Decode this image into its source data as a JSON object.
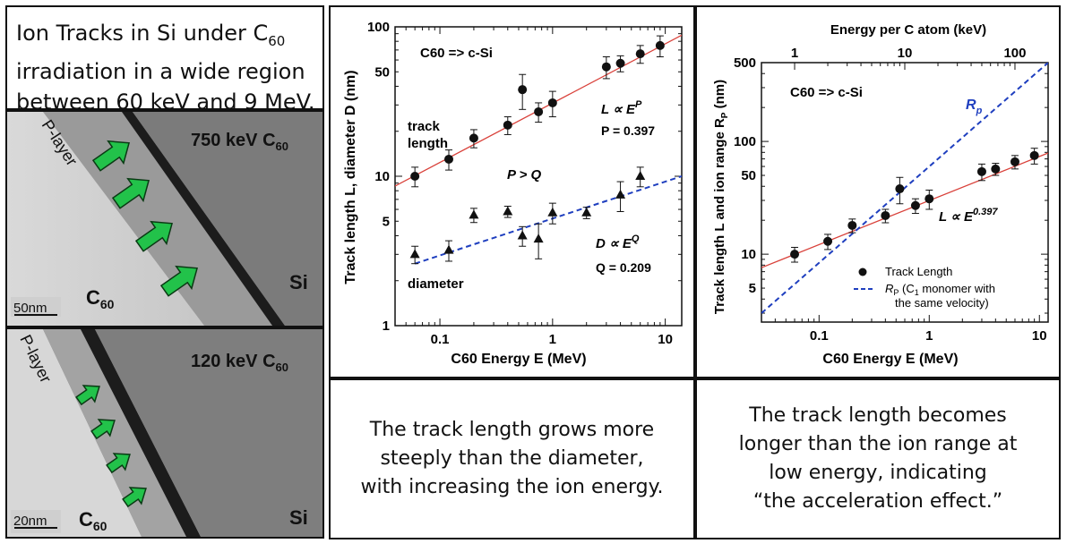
{
  "title": {
    "line1": "Ion Tracks in Si under C",
    "line1_sub": "60",
    "line2": "irradiation in a wide region",
    "line3": "between 60 keV and 9 MeV."
  },
  "tem_panels": [
    {
      "label": "750 keV C",
      "label_sub": "60",
      "player": "P-layer",
      "scale": "50nm",
      "c60": "C",
      "c60_sub": "60",
      "si": "Si"
    },
    {
      "label": "120 keV C",
      "label_sub": "60",
      "player": "P-layer",
      "scale": "20nm",
      "c60": "C",
      "c60_sub": "60",
      "si": "Si"
    }
  ],
  "captions": {
    "left": [
      "The track length grows more",
      "steeply than the diameter,",
      "with increasing the ion energy."
    ],
    "right": [
      "The track length becomes",
      "longer than the ion range at",
      "low energy, indicating",
      "“the acceleration effect.”"
    ]
  },
  "chart_data": [
    {
      "type": "scatter",
      "xscale": "log",
      "yscale": "log",
      "xlim": [
        0.04,
        14
      ],
      "ylim": [
        1,
        100
      ],
      "xticks": [
        "0.1",
        "1",
        "10"
      ],
      "yticks": [
        "1",
        "5",
        "10",
        "50",
        "100"
      ],
      "xlabel": "C60 Energy  E  (MeV)",
      "ylabel": "Track length  L, diameter  D  (nm)",
      "annotations": {
        "system": "C60 => c-Si",
        "track": "track",
        "length": "length",
        "pq": "P > Q",
        "diameter": "diameter",
        "l_law": "L ∝ E",
        "l_exp": "P",
        "p_value": "P = 0.397",
        "d_law": "D ∝ E",
        "d_exp": "Q",
        "q_value": "Q = 0.209"
      },
      "series": [
        {
          "marker": "circle",
          "x": [
            0.06,
            0.12,
            0.2,
            0.4,
            0.54,
            0.75,
            1.0,
            3.0,
            4.0,
            6.0,
            9.0
          ],
          "y": [
            10,
            13,
            18,
            22,
            38,
            27,
            31,
            54,
            57,
            66,
            75
          ],
          "err": [
            1.5,
            2,
            2.5,
            3,
            10,
            4,
            6,
            9,
            7,
            9,
            12
          ]
        },
        {
          "marker": "triangle",
          "x": [
            0.06,
            0.12,
            0.2,
            0.4,
            0.54,
            0.75,
            1.0,
            2.0,
            4.0,
            6.0
          ],
          "y": [
            3.0,
            3.2,
            5.5,
            5.8,
            4.0,
            3.8,
            5.7,
            5.7,
            7.5,
            10
          ],
          "err": [
            0.4,
            0.5,
            0.6,
            0.5,
            0.6,
            1.0,
            0.9,
            0.5,
            1.7,
            1.5
          ]
        }
      ],
      "fits": [
        {
          "name": "L fit",
          "color": "#d9413a",
          "style": "solid",
          "x": [
            0.04,
            14
          ],
          "y": [
            8.6,
            88
          ]
        },
        {
          "name": "D fit",
          "color": "#1f3fbf",
          "style": "dashed",
          "x": [
            0.06,
            14
          ],
          "y": [
            2.6,
            10
          ]
        }
      ]
    },
    {
      "type": "scatter",
      "xscale": "log",
      "yscale": "log",
      "xlim": [
        0.03,
        12
      ],
      "ylim": [
        2.5,
        500
      ],
      "xticks": [
        "0.1",
        "1",
        "10"
      ],
      "yticks": [
        "5",
        "10",
        "50",
        "100",
        "500"
      ],
      "top_xticks": [
        "1",
        "10",
        "100"
      ],
      "top_xlabel": "Energy per C atom (keV)",
      "xlabel": "C60 Energy  E  (MeV)",
      "ylabel": "Track length  L  and ion range  R",
      "ylabel_sub": "P",
      "ylabel_unit": "(nm)",
      "annotations": {
        "system": "C60 => c-Si",
        "rp": "R",
        "rp_sub": "p",
        "l_law": "L ∝ E",
        "l_exp": "0.397"
      },
      "legend": {
        "placement": "bottom-right",
        "entries": [
          "Track Length",
          "R",
          "P",
          " (C",
          "1",
          " monomer with",
          "the same velocity)"
        ]
      },
      "series": [
        {
          "name": "Track Length",
          "marker": "circle",
          "x": [
            0.06,
            0.12,
            0.2,
            0.4,
            0.54,
            0.75,
            1.0,
            3.0,
            4.0,
            6.0,
            9.0
          ],
          "y": [
            10,
            13,
            18,
            22,
            38,
            27,
            31,
            54,
            57,
            66,
            75
          ],
          "err": [
            1.5,
            2,
            2.5,
            3,
            10,
            4,
            6,
            9,
            7,
            9,
            12
          ]
        }
      ],
      "fits": [
        {
          "name": "L fit",
          "color": "#d9413a",
          "style": "solid",
          "x": [
            0.03,
            12
          ],
          "y": [
            7.6,
            79
          ]
        },
        {
          "name": "Rp",
          "color": "#1f3fbf",
          "style": "dashed",
          "x": [
            0.03,
            12
          ],
          "y": [
            3.0,
            500
          ]
        }
      ]
    }
  ]
}
